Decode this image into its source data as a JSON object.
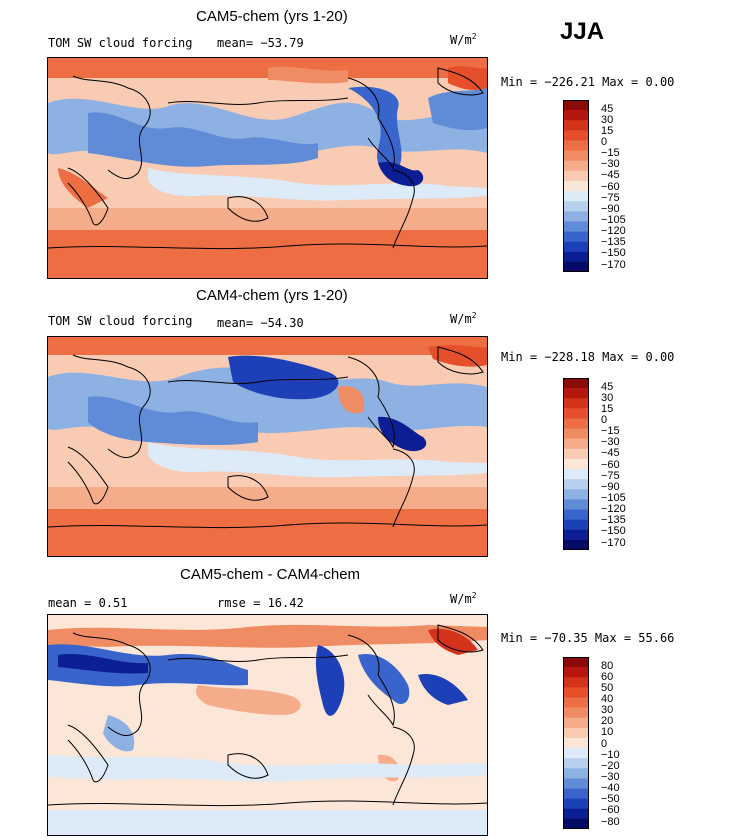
{
  "season": "JJA",
  "panels": [
    {
      "title": "CAM5-chem (yrs 1-20)",
      "field": "TOM SW cloud forcing",
      "mean": "mean= −53.79",
      "units": "W/m",
      "units_sup": "2",
      "minmax": "Min = −226.21 Max =     0.00",
      "cbar_labels": [
        "45",
        "30",
        "15",
        "0",
        "−15",
        "−30",
        "−45",
        "−60",
        "−75",
        "−90",
        "−105",
        "−120",
        "−135",
        "−150",
        "−170"
      ],
      "cbar_colors": [
        "#8b0a0a",
        "#b5170f",
        "#d3331b",
        "#e5502b",
        "#ee6e44",
        "#f08c64",
        "#f4ac8a",
        "#f8cbb2",
        "#fbe6d8",
        "#ddeaf7",
        "#b7d0ee",
        "#8eb1e3",
        "#5f8bd7",
        "#3864cc",
        "#1d3fb7",
        "#0b1e93",
        "#050a66"
      ]
    },
    {
      "title": "CAM4-chem (yrs 1-20)",
      "field": "TOM SW cloud forcing",
      "mean": "mean= −54.30",
      "units": "W/m",
      "units_sup": "2",
      "minmax": "Min = −228.18 Max =     0.00",
      "cbar_labels": [
        "45",
        "30",
        "15",
        "0",
        "−15",
        "−30",
        "−45",
        "−60",
        "−75",
        "−90",
        "−105",
        "−120",
        "−135",
        "−150",
        "−170"
      ],
      "cbar_colors": [
        "#8b0a0a",
        "#b5170f",
        "#d3331b",
        "#e5502b",
        "#ee6e44",
        "#f08c64",
        "#f4ac8a",
        "#f8cbb2",
        "#fbe6d8",
        "#ddeaf7",
        "#b7d0ee",
        "#8eb1e3",
        "#5f8bd7",
        "#3864cc",
        "#1d3fb7",
        "#0b1e93",
        "#050a66"
      ]
    },
    {
      "title": "CAM5-chem - CAM4-chem",
      "field": "mean =    0.51",
      "mean": "rmse =   16.42",
      "units": "W/m",
      "units_sup": "2",
      "minmax": "Min = −70.35 Max =   55.66",
      "cbar_labels": [
        "80",
        "60",
        "50",
        "40",
        "30",
        "20",
        "10",
        "0",
        "−10",
        "−20",
        "−30",
        "−40",
        "−50",
        "−60",
        "−80"
      ],
      "cbar_colors": [
        "#8b0a0a",
        "#b5170f",
        "#d3331b",
        "#e5502b",
        "#ee6e44",
        "#f08c64",
        "#f4ac8a",
        "#f8cbb2",
        "#fbe6d8",
        "#ddeaf7",
        "#b7d0ee",
        "#8eb1e3",
        "#5f8bd7",
        "#3864cc",
        "#1d3fb7",
        "#0b1e93",
        "#050a66"
      ]
    }
  ]
}
